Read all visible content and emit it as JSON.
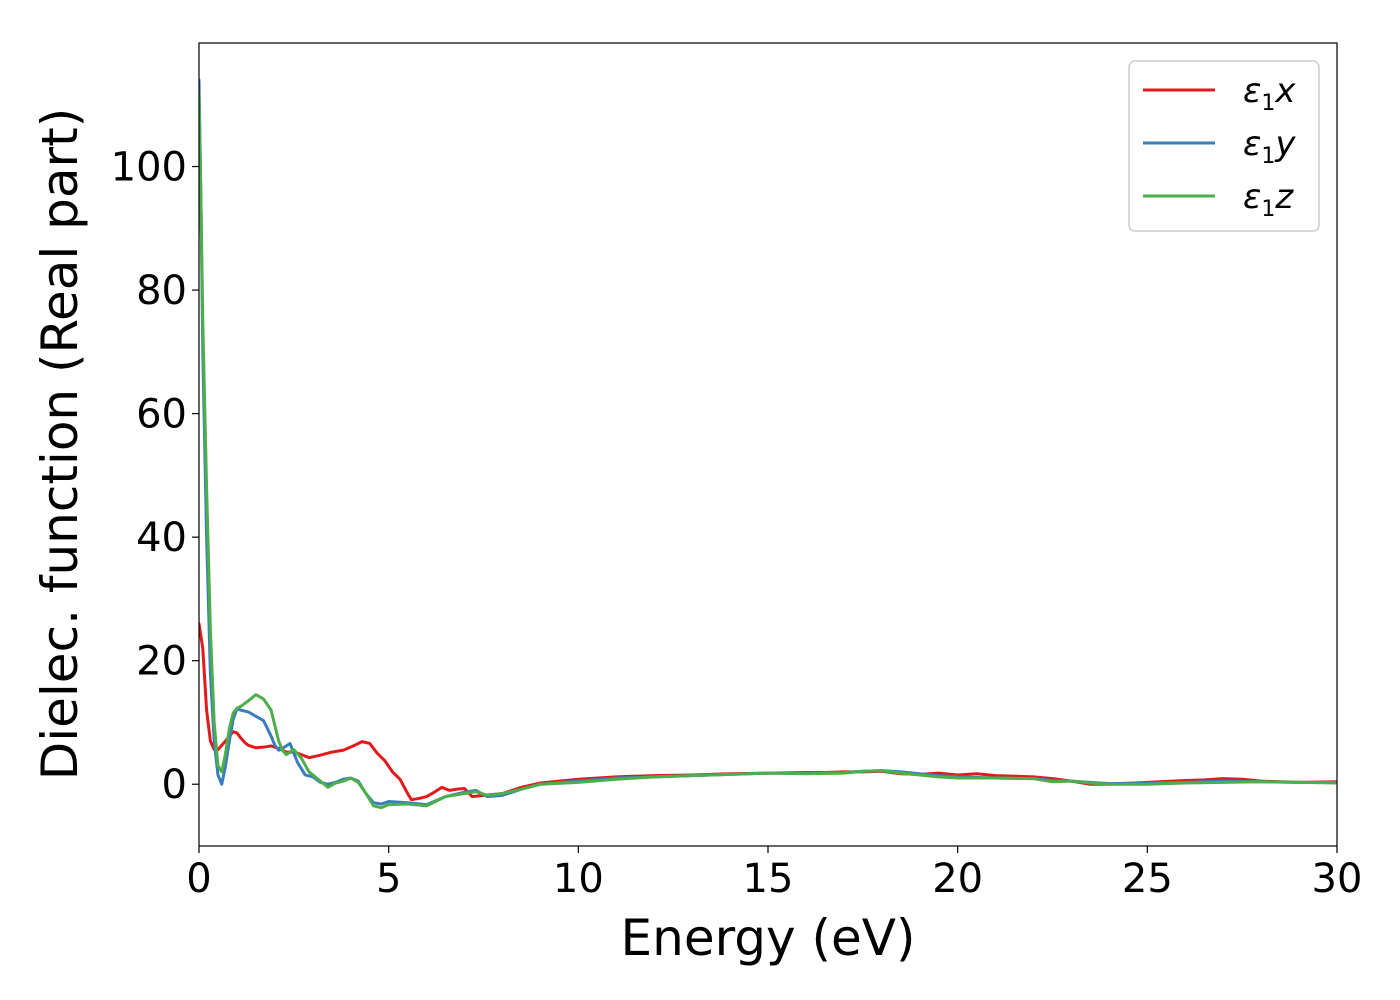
{
  "chart_data": {
    "type": "line",
    "xlabel": "Energy (eV)",
    "ylabel": "Dielec. function (Real part)",
    "xlim": [
      0,
      30
    ],
    "ylim": [
      -10,
      120
    ],
    "grid": false,
    "legend_position": "top-right",
    "x_ticks": [
      "0",
      "5",
      "10",
      "15",
      "20",
      "25",
      "30"
    ],
    "y_ticks": [
      "0",
      "20",
      "40",
      "60",
      "80",
      "100"
    ],
    "series": [
      {
        "name": "ε1x",
        "name_parts": [
          "ε",
          "1",
          "x"
        ],
        "color": "#e31a1c",
        "x": [
          0,
          0.1,
          0.2,
          0.3,
          0.4,
          0.5,
          0.7,
          0.9,
          1.0,
          1.1,
          1.2,
          1.3,
          1.5,
          1.7,
          1.9,
          2.1,
          2.3,
          2.5,
          2.7,
          2.9,
          3.2,
          3.5,
          3.8,
          4.1,
          4.3,
          4.5,
          4.7,
          4.9,
          5.1,
          5.3,
          5.5,
          5.6,
          5.8,
          6.0,
          6.2,
          6.4,
          6.6,
          6.8,
          7.0,
          7.2,
          7.5,
          8.0,
          8.5,
          9.0,
          10.0,
          11.0,
          12.0,
          13.0,
          14.0,
          15.0,
          16.0,
          16.5,
          17.0,
          17.5,
          18.0,
          18.5,
          19.0,
          19.5,
          20.0,
          20.5,
          21.0,
          22.0,
          22.5,
          23.0,
          23.5,
          24.0,
          25.0,
          26.0,
          26.5,
          27.0,
          27.5,
          28.0,
          29.0,
          30.0
        ],
        "y": [
          26,
          22,
          12,
          7,
          5.6,
          5.6,
          7,
          8.5,
          8.3,
          7.5,
          6.8,
          6.3,
          5.9,
          6.0,
          6.2,
          5.8,
          5.2,
          5.2,
          4.8,
          4.3,
          4.7,
          5.2,
          5.5,
          6.3,
          6.9,
          6.6,
          5.0,
          3.8,
          2.0,
          0.8,
          -1.5,
          -2.5,
          -2.3,
          -2.0,
          -1.3,
          -0.5,
          -1.0,
          -0.8,
          -0.7,
          -2.0,
          -1.8,
          -1.5,
          -0.5,
          0.2,
          0.8,
          1.2,
          1.4,
          1.5,
          1.7,
          1.8,
          1.9,
          1.9,
          2.0,
          2.0,
          2.1,
          1.7,
          1.6,
          1.8,
          1.5,
          1.7,
          1.4,
          1.2,
          0.9,
          0.5,
          0.0,
          0.0,
          0.3,
          0.6,
          0.7,
          0.9,
          0.8,
          0.5,
          0.3,
          0.4
        ]
      },
      {
        "name": "ε1y",
        "name_parts": [
          "ε",
          "1",
          "y"
        ],
        "color": "#3a7dbf",
        "x": [
          0,
          0.05,
          0.1,
          0.2,
          0.3,
          0.4,
          0.5,
          0.6,
          0.7,
          0.8,
          0.9,
          1.0,
          1.1,
          1.3,
          1.5,
          1.7,
          1.9,
          2.0,
          2.1,
          2.2,
          2.4,
          2.5,
          2.6,
          2.8,
          3.0,
          3.2,
          3.4,
          3.6,
          3.8,
          4.0,
          4.2,
          4.4,
          4.6,
          4.8,
          5.0,
          5.5,
          6.0,
          6.5,
          7.0,
          7.3,
          7.6,
          8.0,
          8.5,
          9.0,
          10.0,
          11.0,
          12.0,
          13.0,
          14.0,
          15.0,
          16.0,
          17.0,
          17.5,
          18.0,
          18.5,
          19.0,
          19.5,
          20.0,
          21.0,
          22.0,
          22.5,
          23.0,
          23.5,
          24.0,
          25.0,
          26.0,
          27.0,
          28.0,
          29.0,
          30.0
        ],
        "y": [
          114,
          95,
          70,
          40,
          18,
          7,
          1.5,
          0,
          3,
          7,
          10.5,
          12.2,
          12.0,
          11.7,
          11.0,
          10.3,
          7.8,
          6.3,
          5.5,
          5.8,
          6.6,
          5.0,
          3.5,
          1.5,
          1.2,
          0.3,
          0.0,
          0.3,
          0.8,
          1.0,
          0.5,
          -1.5,
          -3.0,
          -3.2,
          -2.8,
          -3.0,
          -3.3,
          -2.0,
          -1.3,
          -1.0,
          -2.0,
          -1.8,
          -0.8,
          0.0,
          0.5,
          1.0,
          1.2,
          1.4,
          1.6,
          1.8,
          1.8,
          1.9,
          2.1,
          2.2,
          2.0,
          1.7,
          1.4,
          1.2,
          1.0,
          0.9,
          0.6,
          0.5,
          0.3,
          0.1,
          0.2,
          0.3,
          0.5,
          0.4,
          0.3,
          0.3
        ]
      },
      {
        "name": "ε1z",
        "name_parts": [
          "ε",
          "1",
          "z"
        ],
        "color": "#4daf4a",
        "x": [
          0,
          0.05,
          0.1,
          0.2,
          0.3,
          0.4,
          0.5,
          0.6,
          0.7,
          0.8,
          0.9,
          1.0,
          1.1,
          1.3,
          1.5,
          1.7,
          1.9,
          2.0,
          2.1,
          2.2,
          2.3,
          2.5,
          2.7,
          2.9,
          3.0,
          3.2,
          3.4,
          3.6,
          3.8,
          4.0,
          4.2,
          4.4,
          4.6,
          4.8,
          5.0,
          5.5,
          6.0,
          6.5,
          7.0,
          7.3,
          7.6,
          8.0,
          8.5,
          9.0,
          10.0,
          11.0,
          12.0,
          13.0,
          14.0,
          15.0,
          16.0,
          17.0,
          17.5,
          18.0,
          18.5,
          19.0,
          19.5,
          20.0,
          21.0,
          22.0,
          22.5,
          23.0,
          23.5,
          24.0,
          25.0,
          26.0,
          27.0,
          28.0,
          29.0,
          30.0
        ],
        "y": [
          112,
          95,
          75,
          48,
          25,
          10,
          3,
          2,
          5,
          9,
          11.5,
          12.3,
          12.6,
          13.5,
          14.5,
          13.8,
          12.0,
          9.5,
          7.0,
          5.5,
          4.8,
          5.6,
          4.2,
          2.0,
          1.5,
          0.5,
          -0.5,
          0.2,
          0.5,
          1.0,
          0.3,
          -1.5,
          -3.5,
          -3.8,
          -3.3,
          -3.2,
          -3.5,
          -2.0,
          -1.5,
          -1.2,
          -1.8,
          -1.5,
          -0.8,
          0.0,
          0.3,
          0.8,
          1.2,
          1.4,
          1.6,
          1.8,
          1.7,
          1.8,
          2.1,
          2.2,
          1.8,
          1.5,
          1.2,
          1.0,
          1.0,
          0.9,
          0.4,
          0.5,
          0.2,
          0.0,
          0.0,
          0.2,
          0.3,
          0.4,
          0.3,
          0.2
        ]
      }
    ]
  }
}
